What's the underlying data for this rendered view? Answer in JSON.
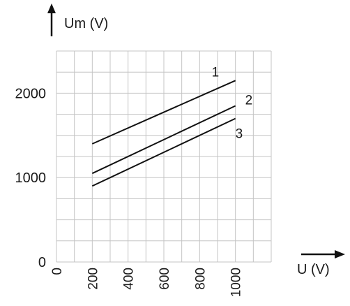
{
  "chart_data": {
    "type": "line",
    "title": "",
    "xlabel": "U (V)",
    "ylabel": "Um (V)",
    "xlim": [
      0,
      1200
    ],
    "ylim": [
      0,
      2500
    ],
    "x_ticks": [
      0,
      200,
      400,
      600,
      800,
      1000
    ],
    "x_tick_labels": [
      "0",
      "200",
      "400",
      "600",
      "800",
      "1000"
    ],
    "y_ticks": [
      0,
      1000,
      2000
    ],
    "y_tick_labels": [
      "0",
      "1000",
      "2000"
    ],
    "grid": true,
    "legend": "none",
    "series": [
      {
        "name": "1",
        "x": [
          200,
          1000
        ],
        "values": [
          1400,
          2150
        ]
      },
      {
        "name": "2",
        "x": [
          200,
          1000
        ],
        "values": [
          1050,
          1850
        ]
      },
      {
        "name": "3",
        "x": [
          200,
          1000
        ],
        "values": [
          900,
          1700
        ]
      }
    ],
    "colors": {
      "line": "#111111",
      "grid": "#c4c4c4"
    }
  }
}
